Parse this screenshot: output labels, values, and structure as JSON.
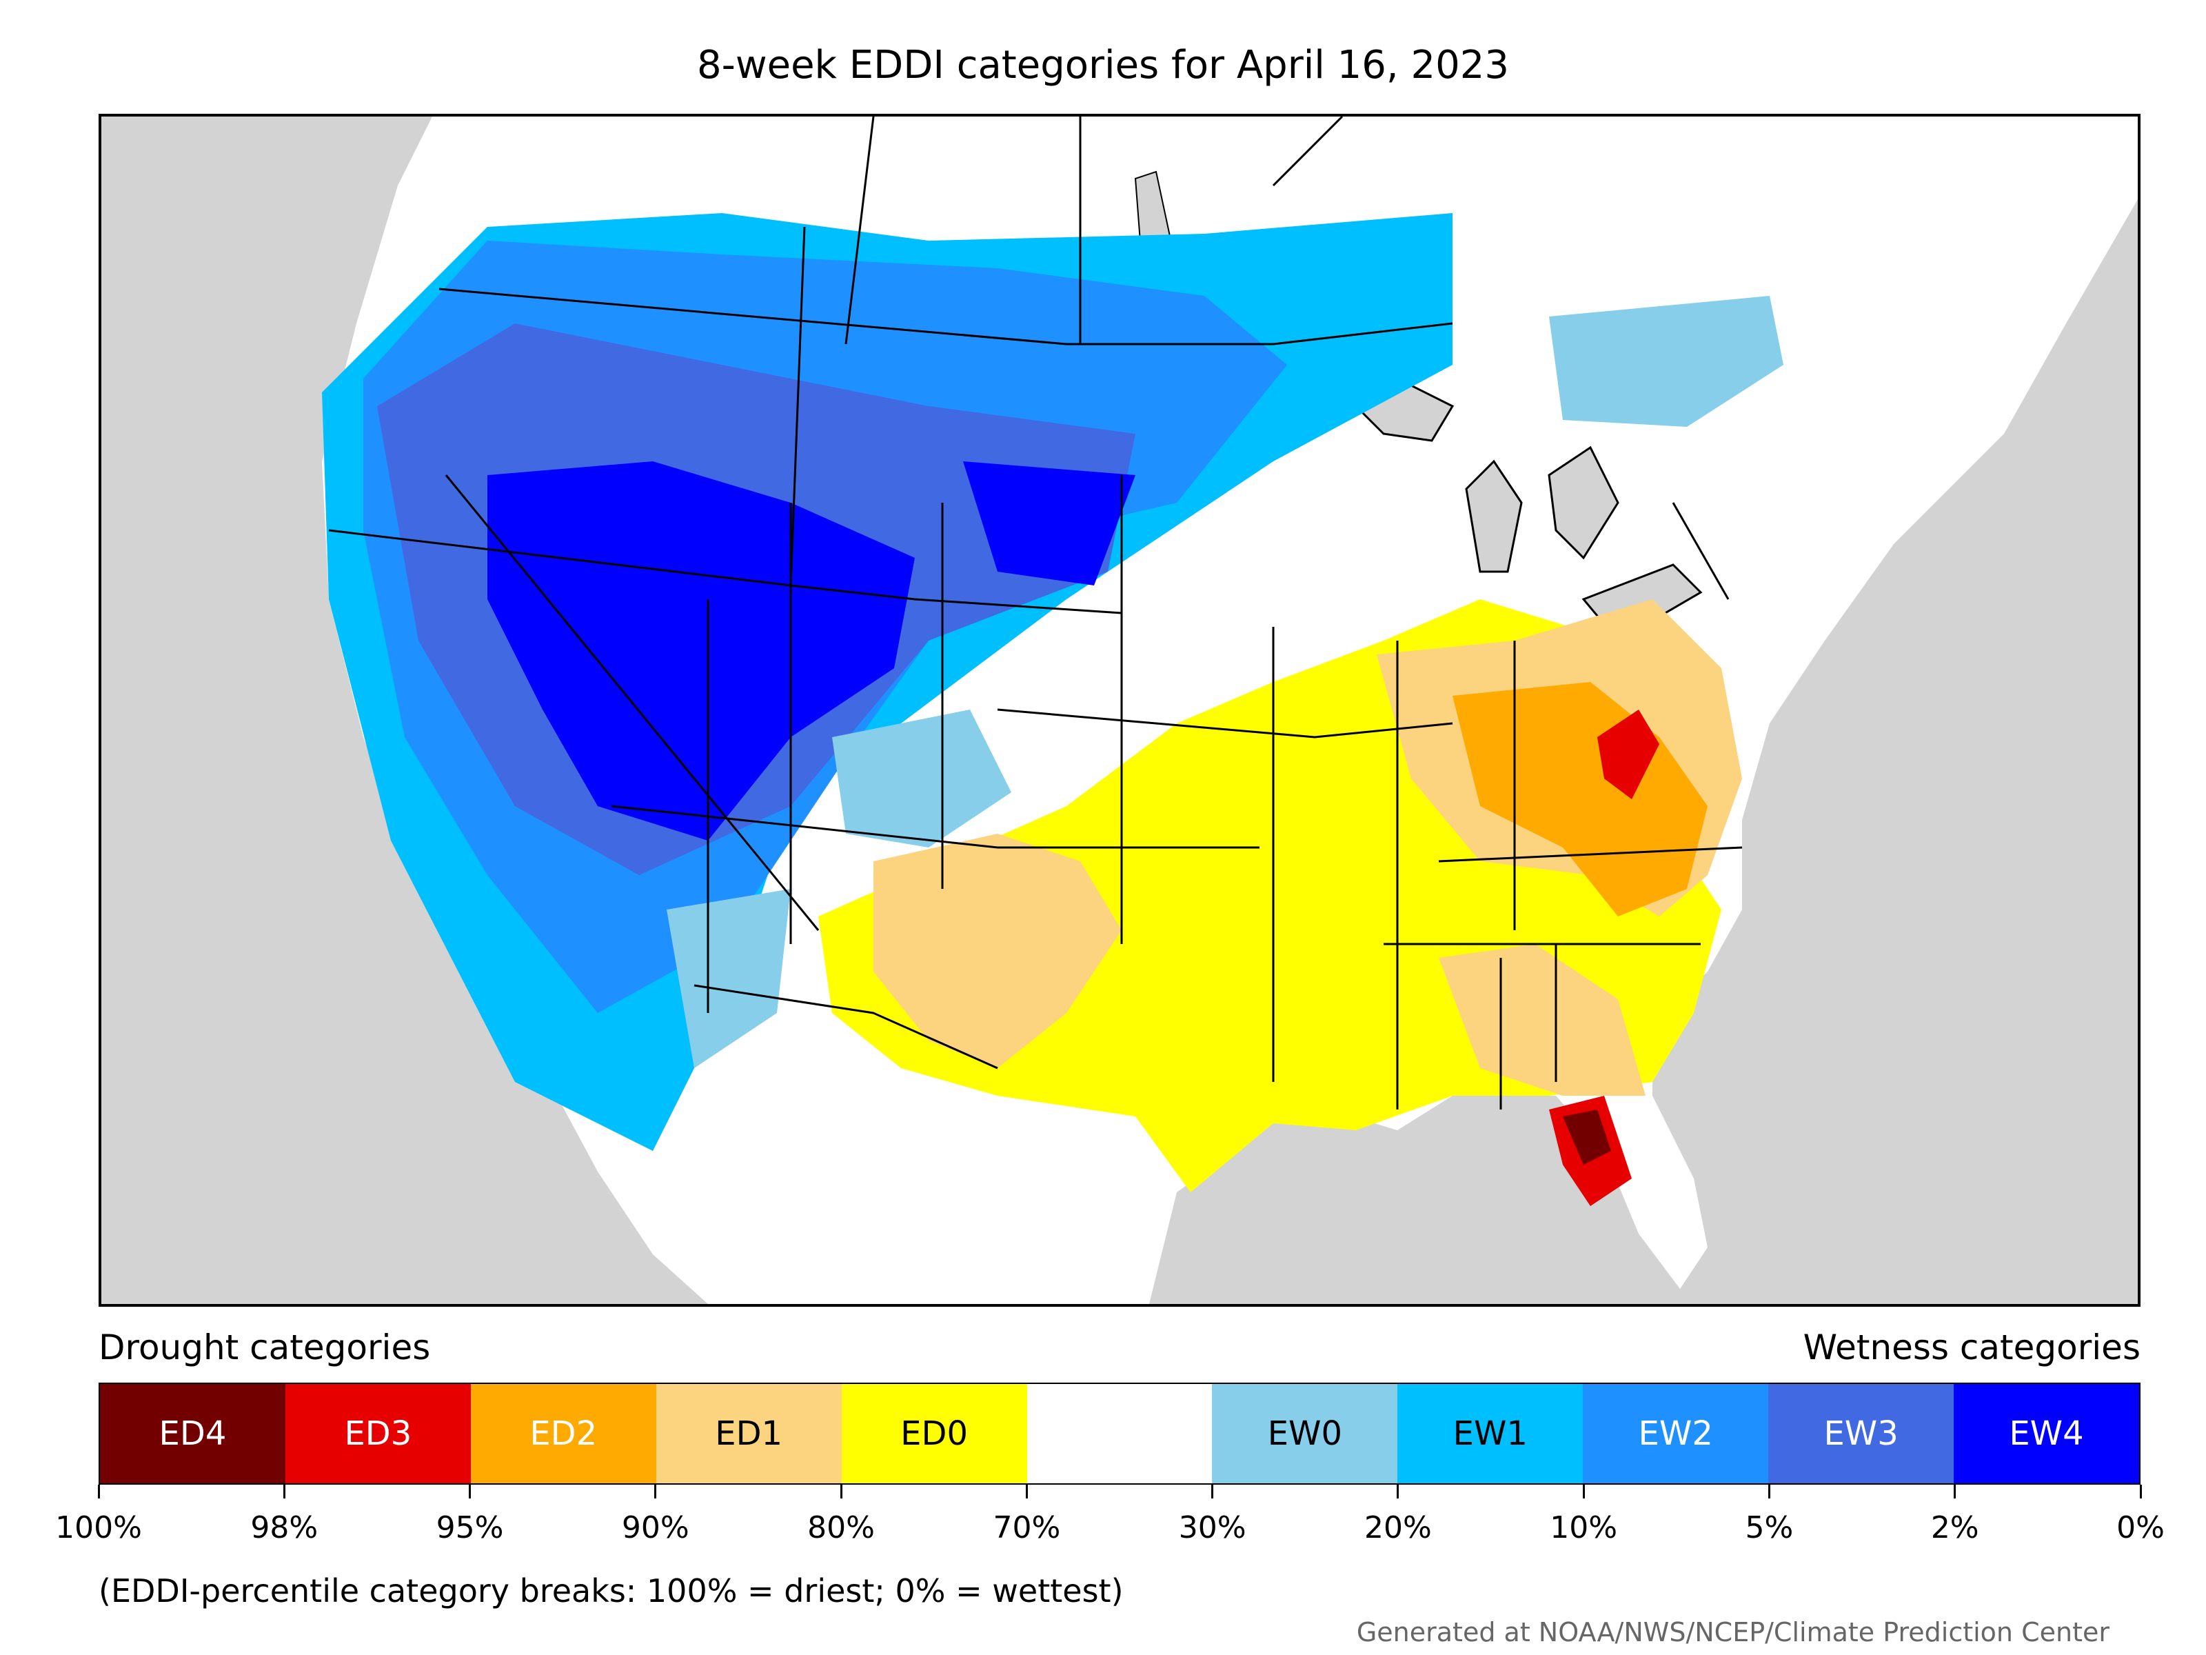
{
  "title": "8-week EDDI categories for April 16, 2023",
  "legend": {
    "drought_caption": "Drought categories",
    "wetness_caption": "Wetness categories",
    "categories": [
      {
        "label": "ED4",
        "color": "#730000",
        "text_color": "#ffffff"
      },
      {
        "label": "ED3",
        "color": "#e60000",
        "text_color": "#ffffff"
      },
      {
        "label": "ED2",
        "color": "#ffaa00",
        "text_color": "#ffffff"
      },
      {
        "label": "ED1",
        "color": "#fcd37f",
        "text_color": "#000000"
      },
      {
        "label": "ED0",
        "color": "#ffff00",
        "text_color": "#000000"
      },
      {
        "label": "",
        "color": "#ffffff",
        "text_color": "#000000"
      },
      {
        "label": "EW0",
        "color": "#87ceeb",
        "text_color": "#000000"
      },
      {
        "label": "EW1",
        "color": "#00bfff",
        "text_color": "#000000"
      },
      {
        "label": "EW2",
        "color": "#1e90ff",
        "text_color": "#ffffff"
      },
      {
        "label": "EW3",
        "color": "#4169e1",
        "text_color": "#ffffff"
      },
      {
        "label": "EW4",
        "color": "#0000ff",
        "text_color": "#ffffff"
      }
    ],
    "ticks": [
      "100%",
      "98%",
      "95%",
      "90%",
      "80%",
      "70%",
      "30%",
      "20%",
      "10%",
      "5%",
      "2%",
      "0%"
    ]
  },
  "note": "(EDDI-percentile category breaks: 100% = driest; 0% = wettest)",
  "credit": "Generated at NOAA/NWS/NCEP/Climate Prediction Center",
  "map_colors": {
    "ocean": "#d3d3d3",
    "land": "#ffffff",
    "border": "#000000"
  }
}
